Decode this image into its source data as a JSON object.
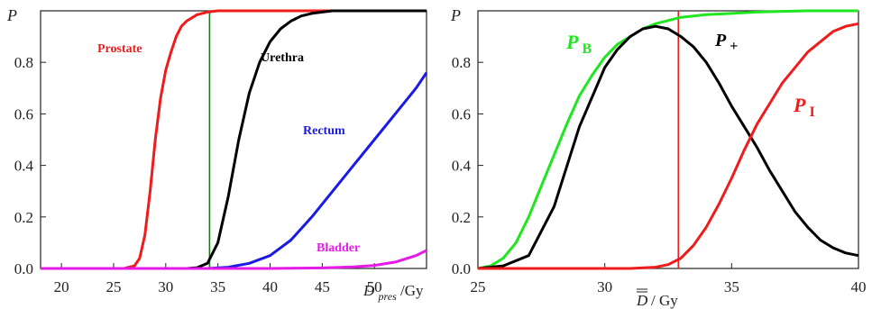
{
  "chart_data": [
    {
      "type": "line",
      "ylabel": "P",
      "xlabel_main": "D",
      "xlabel_sub": "pres",
      "xlabel_unit": "/Gy",
      "xlim": [
        18,
        55
      ],
      "ylim": [
        0,
        1
      ],
      "xticks": [
        20,
        25,
        30,
        35,
        40,
        45,
        50
      ],
      "yticks": [
        0.0,
        0.2,
        0.4,
        0.6,
        0.8
      ],
      "ytick_labels": [
        "0.0",
        "0.2",
        "0.4",
        "0.6",
        "0.8"
      ],
      "vline_x": 34.2,
      "vline_color": "#1a7a1a",
      "grid": false,
      "series": [
        {
          "name": "Prostate",
          "color": "#ee1c1c",
          "label_color": "#ee1c1c",
          "x": [
            18,
            26,
            27,
            27.5,
            28,
            28.5,
            29,
            29.5,
            30,
            30.5,
            31,
            31.5,
            32,
            33,
            34,
            35,
            36,
            55
          ],
          "y": [
            0,
            0,
            0.01,
            0.04,
            0.13,
            0.3,
            0.5,
            0.66,
            0.77,
            0.84,
            0.9,
            0.94,
            0.96,
            0.985,
            0.995,
            1.0,
            1.0,
            1.0
          ]
        },
        {
          "name": "Urethra",
          "color": "#000000",
          "label_color": "#000000",
          "x": [
            18,
            32,
            33,
            34,
            35,
            36,
            37,
            38,
            39,
            40,
            41,
            42,
            43,
            44,
            45,
            46,
            47,
            55
          ],
          "y": [
            0,
            0,
            0.003,
            0.02,
            0.1,
            0.28,
            0.5,
            0.68,
            0.8,
            0.88,
            0.93,
            0.96,
            0.98,
            0.99,
            0.995,
            1.0,
            1.0,
            1.0
          ]
        },
        {
          "name": "Rectum",
          "color": "#1a1ae6",
          "label_color": "#1a1ae6",
          "x": [
            18,
            34,
            36,
            38,
            40,
            42,
            44,
            46,
            48,
            50,
            52,
            54,
            55
          ],
          "y": [
            0,
            0,
            0.005,
            0.02,
            0.05,
            0.11,
            0.2,
            0.3,
            0.4,
            0.5,
            0.6,
            0.7,
            0.76
          ]
        },
        {
          "name": "Bladder",
          "color": "#e61ae6",
          "label_color": "#e61ae6",
          "x": [
            18,
            40,
            45,
            48,
            50,
            52,
            54,
            55
          ],
          "y": [
            0,
            0,
            0.002,
            0.006,
            0.012,
            0.025,
            0.05,
            0.07
          ]
        }
      ]
    },
    {
      "type": "line",
      "ylabel": "P",
      "xlabel_main": "D",
      "xlabel_unit": "/ Gy",
      "xlim": [
        25,
        40
      ],
      "ylim": [
        0,
        1
      ],
      "xticks": [
        25,
        30,
        35,
        40
      ],
      "yticks": [
        0.0,
        0.2,
        0.4,
        0.6,
        0.8
      ],
      "ytick_labels": [
        "0.0",
        "0.2",
        "0.4",
        "0.6",
        "0.8"
      ],
      "vline_x": 32.9,
      "vline_color": "#ee1c1c",
      "grid": false,
      "series": [
        {
          "name": "P",
          "sub": "B",
          "italic_letter": "P",
          "color": "#1fe61f",
          "x": [
            25,
            25.5,
            26,
            26.5,
            27,
            27.5,
            28,
            28.5,
            29,
            29.5,
            30,
            30.5,
            31,
            31.5,
            32,
            33,
            34,
            35,
            36,
            37,
            38,
            39,
            40
          ],
          "y": [
            0,
            0.01,
            0.04,
            0.1,
            0.2,
            0.32,
            0.44,
            0.56,
            0.67,
            0.75,
            0.82,
            0.87,
            0.9,
            0.93,
            0.95,
            0.975,
            0.985,
            0.99,
            0.995,
            0.998,
            1.0,
            1.0,
            1.0
          ]
        },
        {
          "name": "P",
          "sub": "+",
          "italic_letter": "P",
          "color": "#000000",
          "x": [
            25,
            26,
            27,
            28,
            29,
            30,
            30.5,
            31,
            31.5,
            32,
            32.5,
            33,
            33.5,
            34,
            34.5,
            35,
            35.5,
            36,
            36.5,
            37,
            37.5,
            38,
            38.5,
            39,
            39.5,
            40
          ],
          "y": [
            0,
            0.01,
            0.05,
            0.24,
            0.55,
            0.78,
            0.85,
            0.9,
            0.93,
            0.94,
            0.93,
            0.9,
            0.86,
            0.8,
            0.72,
            0.63,
            0.55,
            0.47,
            0.38,
            0.3,
            0.22,
            0.16,
            0.11,
            0.08,
            0.06,
            0.05
          ]
        },
        {
          "name": "P",
          "sub": "I",
          "italic_letter": "P",
          "color": "#ee1c1c",
          "x": [
            25,
            31,
            32,
            32.5,
            33,
            33.5,
            34,
            34.5,
            35,
            35.5,
            36,
            36.5,
            37,
            37.5,
            38,
            38.5,
            39,
            39.5,
            40
          ],
          "y": [
            0,
            0,
            0.005,
            0.015,
            0.04,
            0.09,
            0.16,
            0.25,
            0.35,
            0.46,
            0.56,
            0.64,
            0.72,
            0.78,
            0.84,
            0.88,
            0.92,
            0.94,
            0.95
          ]
        }
      ]
    }
  ]
}
